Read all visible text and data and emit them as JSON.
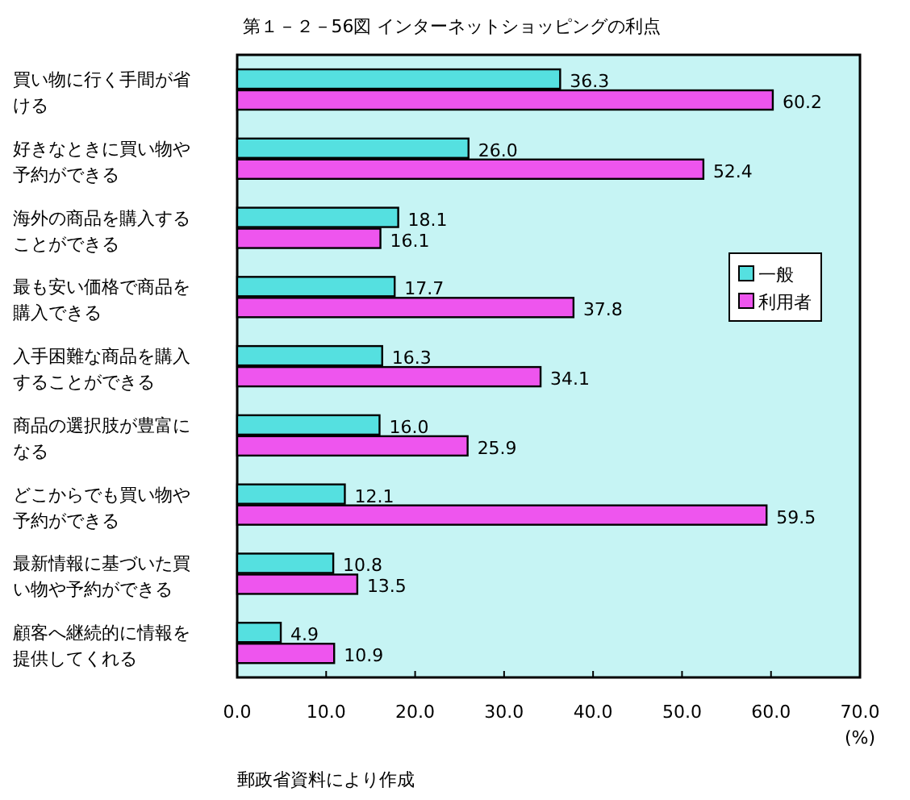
{
  "chart_data": {
    "type": "bar",
    "orientation": "horizontal",
    "title": "第１－２－56図 インターネットショッピングの利点",
    "categories": [
      "買い物に行く手間が省ける",
      "好きなときに買い物や予約ができる",
      "海外の商品を購入することができる",
      "最も安い価格で商品を購入できる",
      "入手困難な商品を購入することができる",
      "商品の選択肢が豊富になる",
      "どこからでも買い物や予約ができる",
      "最新情報に基づいた買い物や予約ができる",
      "顧客へ継続的に情報を提供してくれる"
    ],
    "series": [
      {
        "name": "一般",
        "color": "#55e0e0",
        "values": [
          36.3,
          26.0,
          18.1,
          17.7,
          16.3,
          16.0,
          12.1,
          10.8,
          4.9
        ],
        "value_labels": [
          "36.3",
          "26.0",
          "18.1",
          "17.7",
          "16.3",
          "16.0",
          "12.1",
          "10.8",
          "4.9"
        ]
      },
      {
        "name": "利用者",
        "color": "#ee55ee",
        "values": [
          60.2,
          52.4,
          16.1,
          37.8,
          34.1,
          25.9,
          59.5,
          13.5,
          10.9
        ],
        "value_labels": [
          "60.2",
          "52.4",
          "16.1",
          "37.8",
          "34.1",
          "25.9",
          "59.5",
          "13.5",
          "10.9"
        ]
      }
    ],
    "xlim": [
      0,
      70
    ],
    "xticks": [
      {
        "value": 0,
        "label": "0.0"
      },
      {
        "value": 10,
        "label": "10.0"
      },
      {
        "value": 20,
        "label": "20.0"
      },
      {
        "value": 30,
        "label": "30.0"
      },
      {
        "value": 40,
        "label": "40.0"
      },
      {
        "value": 50,
        "label": "50.0"
      },
      {
        "value": 60,
        "label": "60.0"
      },
      {
        "value": 70,
        "label": "70.0"
      }
    ],
    "xlabel": "(%)",
    "legend": "right",
    "grid": false,
    "annotations": [
      "郵政省資料により作成"
    ]
  }
}
